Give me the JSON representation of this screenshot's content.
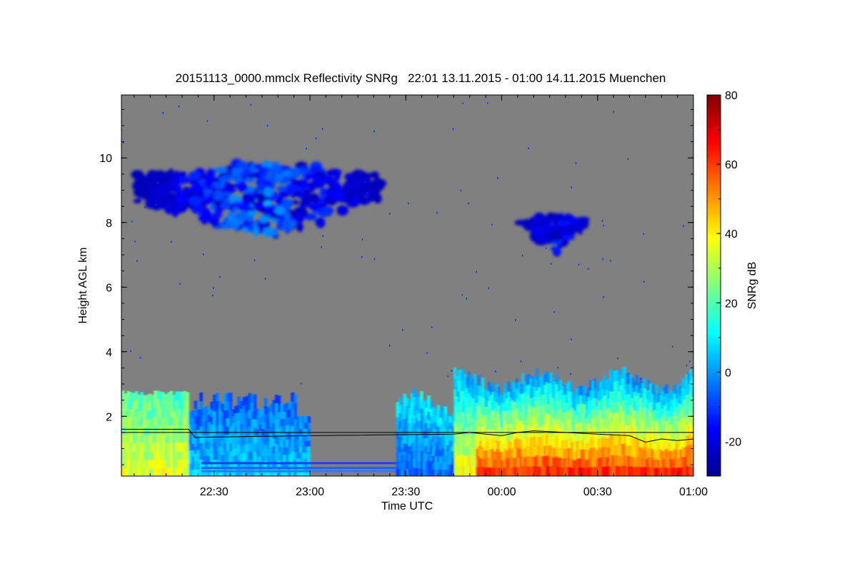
{
  "chart_data": {
    "type": "heatmap",
    "title": "20151113_0000.mmclx Reflectivity SNRg   22:01 13.11.2015 - 01:00 14.11.2015 Muenchen",
    "xlabel": "Time UTC",
    "ylabel": "Height AGL km",
    "colorbar_label": "SNRg dB",
    "x_tick_labels": [
      "22:30",
      "23:00",
      "23:30",
      "00:00",
      "00:30",
      "01:00"
    ],
    "x_ticks_minutes_after_2200": [
      30,
      60,
      90,
      120,
      150,
      180
    ],
    "xlim_minutes_after_2200": [
      1,
      180
    ],
    "y_tick_labels": [
      "2",
      "4",
      "6",
      "8",
      "10"
    ],
    "y_ticks": [
      2,
      4,
      6,
      8,
      10
    ],
    "ylim": [
      0.15,
      11.95
    ],
    "colorbar_tick_labels": [
      "80",
      "60",
      "40",
      "20",
      "0",
      "-20"
    ],
    "colorbar_ticks": [
      80,
      60,
      40,
      20,
      0,
      -20
    ],
    "colorbar_range": [
      -30,
      80
    ],
    "colormap": [
      "#00008f",
      "#0000ff",
      "#0080ff",
      "#00ffff",
      "#80ff80",
      "#ffff00",
      "#ff8000",
      "#ff0000",
      "#800000"
    ],
    "background_color": "#808080",
    "features": [
      {
        "name": "upper cloud layer A",
        "x_range": [
          6,
          82
        ],
        "y_range": [
          7.3,
          10.0
        ],
        "snr_db": [
          -25,
          5
        ]
      },
      {
        "name": "upper cloud layer B",
        "x_range": [
          123,
          150
        ],
        "y_range": [
          6.9,
          8.5
        ],
        "snr_db": [
          -25,
          -10
        ]
      },
      {
        "name": "low layer early",
        "x_range": [
          1,
          60
        ],
        "y_range": [
          0.15,
          2.8
        ],
        "snr_db": [
          -20,
          40
        ]
      },
      {
        "name": "low layer mid",
        "x_range": [
          87,
          105
        ],
        "y_range": [
          0.15,
          2.9
        ],
        "snr_db": [
          -20,
          10
        ]
      },
      {
        "name": "low layer late",
        "x_range": [
          105,
          180
        ],
        "y_range": [
          0.15,
          3.5
        ],
        "snr_db": [
          0,
          70
        ]
      }
    ],
    "boundary_line": {
      "x": [
        1,
        22,
        24,
        60,
        105,
        110,
        115,
        120,
        125,
        130,
        140,
        150,
        160,
        165,
        170,
        175,
        180
      ],
      "y": [
        1.6,
        1.6,
        1.35,
        1.4,
        1.45,
        1.5,
        1.45,
        1.4,
        1.5,
        1.55,
        1.5,
        1.45,
        1.4,
        1.2,
        1.3,
        1.25,
        1.3
      ]
    },
    "grid": false,
    "legend": "colorbar right"
  }
}
